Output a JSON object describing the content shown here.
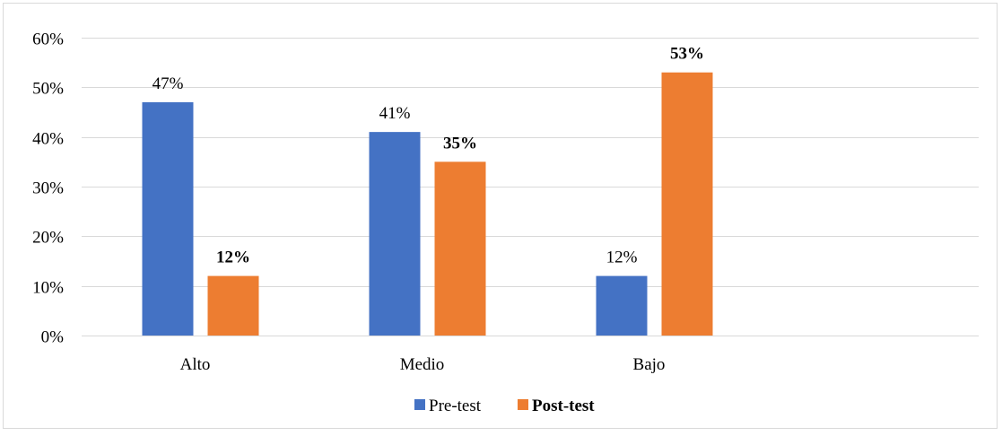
{
  "chart_data": {
    "type": "bar",
    "categories": [
      "Alto",
      "Medio",
      "Bajo"
    ],
    "series": [
      {
        "name": "Pre-test",
        "values": [
          47,
          41,
          12
        ],
        "labels": [
          "47%",
          "41%",
          "12%"
        ],
        "color": "#4472C4",
        "label_bold": false
      },
      {
        "name": "Post-test",
        "values": [
          12,
          35,
          53
        ],
        "labels": [
          "12%",
          "35%",
          "53%"
        ],
        "color": "#ED7D31",
        "label_bold": true
      }
    ],
    "ylim": [
      0,
      60
    ],
    "y_ticks": [
      0,
      10,
      20,
      30,
      40,
      50,
      60
    ],
    "y_tick_labels": [
      "0%",
      "10%",
      "20%",
      "30%",
      "40%",
      "50%",
      "60%"
    ],
    "grid": true,
    "grid_color": "#d9d9d9",
    "legend_position": "bottom",
    "title": "",
    "xlabel": "",
    "ylabel": ""
  }
}
